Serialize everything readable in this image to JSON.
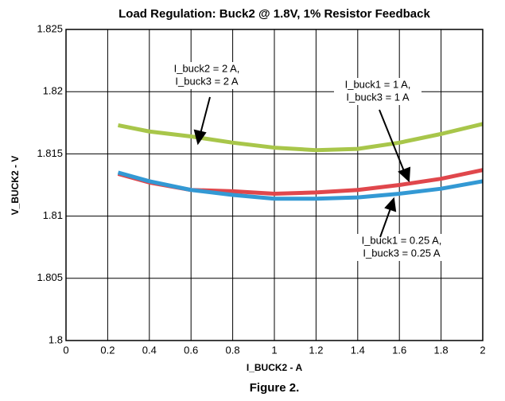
{
  "chart_data": {
    "type": "line",
    "title": "Load Regulation: Buck2 @ 1.8V, 1% Resistor Feedback",
    "x_label": "I_BUCK2 - A",
    "y_label": "V_BUCK2 - V",
    "caption": "Figure 2.",
    "x": [
      0.25,
      0.4,
      0.6,
      0.8,
      1.0,
      1.2,
      1.4,
      1.6,
      1.8,
      2.0
    ],
    "series": [
      {
        "name": [
          "I_buck2 = 2 A,",
          "I_buck3 = 2 A"
        ],
        "color": "#a8c64a",
        "values": [
          1.8173,
          1.8168,
          1.8164,
          1.8159,
          1.8155,
          1.8153,
          1.8154,
          1.8159,
          1.8166,
          1.8174
        ]
      },
      {
        "name": [
          "I_buck1 = 1 A,",
          "I_buck3 = 1 A"
        ],
        "color": "#e0474c",
        "values": [
          1.8134,
          1.8127,
          1.8121,
          1.812,
          1.8118,
          1.8119,
          1.8121,
          1.8125,
          1.813,
          1.8137
        ]
      },
      {
        "name": [
          "I_buck1 = 0.25 A,",
          "I_buck3 = 0.25 A"
        ],
        "color": "#3399d4",
        "values": [
          1.8135,
          1.8128,
          1.8121,
          1.8117,
          1.8114,
          1.8114,
          1.8115,
          1.8118,
          1.8122,
          1.8128
        ]
      }
    ],
    "xlim": [
      0,
      2
    ],
    "xticks": [
      0,
      0.2,
      0.4,
      0.6,
      0.8,
      1,
      1.2,
      1.4,
      1.6,
      1.8,
      2
    ],
    "ylim": [
      1.8,
      1.825
    ],
    "yticks": [
      1.8,
      1.805,
      1.81,
      1.815,
      1.82,
      1.825
    ],
    "grid": true
  }
}
